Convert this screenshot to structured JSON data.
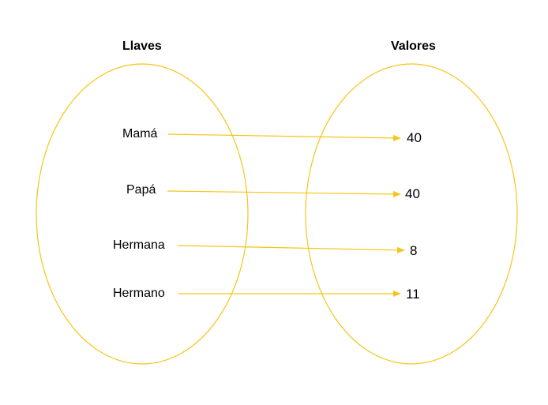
{
  "diagram": {
    "keys_heading": "Llaves",
    "values_heading": "Valores",
    "accent_color": "#F5C518",
    "mappings": [
      {
        "key": "Mamá",
        "value": "40"
      },
      {
        "key": "Papá",
        "value": "40"
      },
      {
        "key": "Hermana",
        "value": "8"
      },
      {
        "key": "Hermano",
        "value": "11"
      }
    ]
  }
}
